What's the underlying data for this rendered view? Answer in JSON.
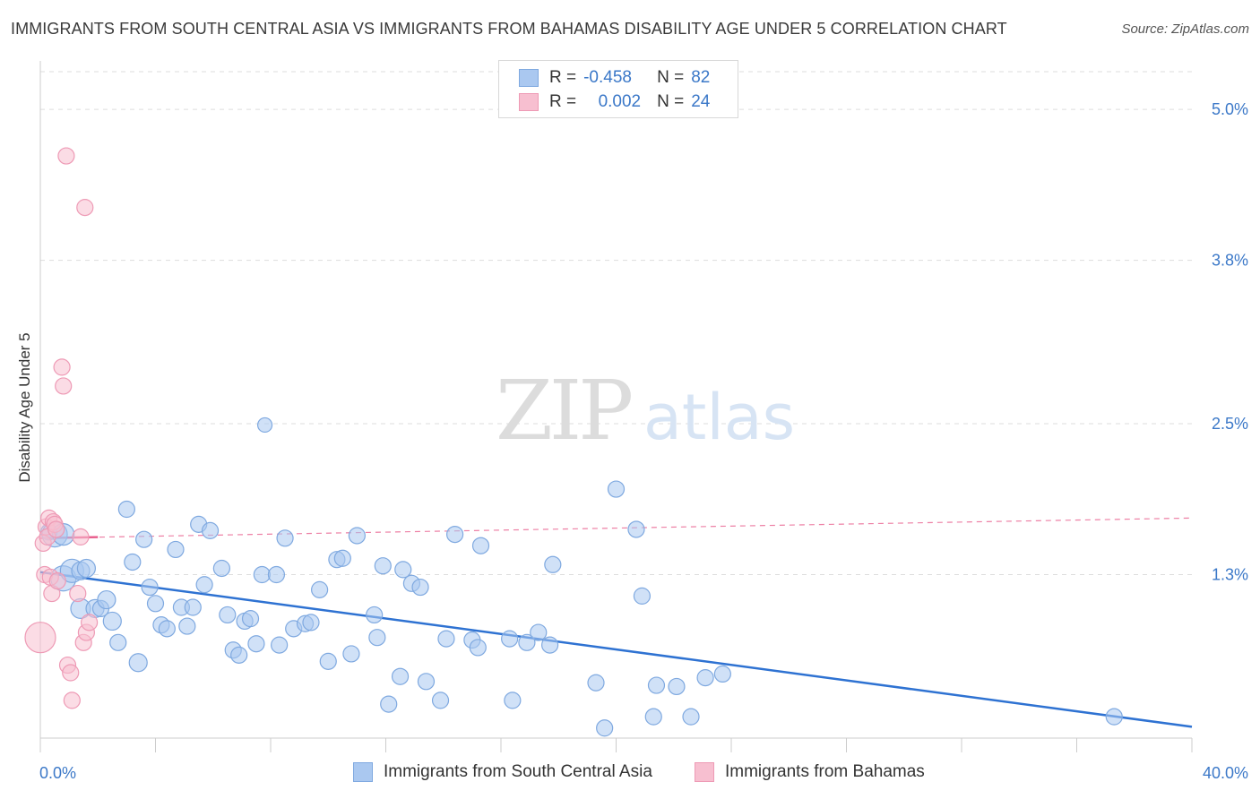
{
  "header": {
    "title": "IMMIGRANTS FROM SOUTH CENTRAL ASIA VS IMMIGRANTS FROM BAHAMAS DISABILITY AGE UNDER 5 CORRELATION CHART",
    "source": "Source: ZipAtlas.com"
  },
  "watermark": {
    "zip": "ZIP",
    "atlas": "atlas"
  },
  "legend": {
    "rows": [
      {
        "r_label": "R =",
        "r_value": "-0.458",
        "n_label": "N =",
        "n_value": "82"
      },
      {
        "r_label": "R =",
        "r_value": "0.002",
        "n_label": "N =",
        "n_value": "24"
      }
    ]
  },
  "colors": {
    "blue_fill": "#aac8f0",
    "blue_stroke": "#7fa9e0",
    "blue_line": "#2e72d2",
    "pink_fill": "#f7bfd0",
    "pink_stroke": "#ee9ab5",
    "pink_line": "#e8608e",
    "axis_label": "#3b78c8",
    "grid": "#dddddd"
  },
  "chart_data": {
    "type": "scatter",
    "title": "IMMIGRANTS FROM SOUTH CENTRAL ASIA VS IMMIGRANTS FROM BAHAMAS DISABILITY AGE UNDER 5 CORRELATION CHART",
    "xlabel": "",
    "ylabel": "Disability Age Under 5",
    "xlim": [
      0,
      40
    ],
    "ylim": [
      0,
      5.3
    ],
    "x_tick_labels": [
      "0.0%",
      "40.0%"
    ],
    "y_ticks": [
      1.3,
      2.5,
      3.8,
      5.0
    ],
    "y_tick_labels": [
      "1.3%",
      "2.5%",
      "3.8%",
      "5.0%"
    ],
    "grid": true,
    "legend_placement": "top-center",
    "series": [
      {
        "name": "Immigrants from South Central Asia",
        "color": "#aac8f0",
        "trend": {
          "x": [
            0,
            40
          ],
          "y": [
            1.32,
            0.09
          ]
        },
        "points": [
          [
            0.3,
            1.64,
            9
          ],
          [
            0.5,
            1.62,
            14
          ],
          [
            0.8,
            1.62,
            12
          ],
          [
            0.8,
            1.27,
            14
          ],
          [
            1.1,
            1.33,
            13
          ],
          [
            1.4,
            1.33,
            10
          ],
          [
            1.6,
            1.35,
            10
          ],
          [
            1.4,
            1.03,
            11
          ],
          [
            1.9,
            1.03,
            10
          ],
          [
            2.1,
            1.03,
            9
          ],
          [
            2.3,
            1.1,
            10
          ],
          [
            2.5,
            0.93,
            10
          ],
          [
            2.7,
            0.76,
            9
          ],
          [
            3.0,
            1.82,
            9
          ],
          [
            3.2,
            1.4,
            9
          ],
          [
            3.4,
            0.6,
            10
          ],
          [
            3.6,
            1.58,
            9
          ],
          [
            3.8,
            1.2,
            9
          ],
          [
            4.0,
            1.07,
            9
          ],
          [
            4.2,
            0.9,
            9
          ],
          [
            4.4,
            0.87,
            9
          ],
          [
            4.7,
            1.5,
            9
          ],
          [
            4.9,
            1.04,
            9
          ],
          [
            5.1,
            0.89,
            9
          ],
          [
            5.3,
            1.04,
            9
          ],
          [
            5.5,
            1.7,
            9
          ],
          [
            5.7,
            1.22,
            9
          ],
          [
            5.9,
            1.65,
            9
          ],
          [
            6.3,
            1.35,
            9
          ],
          [
            6.5,
            0.98,
            9
          ],
          [
            6.7,
            0.7,
            9
          ],
          [
            6.9,
            0.66,
            9
          ],
          [
            7.1,
            0.93,
            9
          ],
          [
            7.3,
            0.95,
            9
          ],
          [
            7.5,
            0.75,
            9
          ],
          [
            7.7,
            1.3,
            9
          ],
          [
            7.8,
            2.49,
            8
          ],
          [
            8.2,
            1.3,
            9
          ],
          [
            8.3,
            0.74,
            9
          ],
          [
            8.5,
            1.59,
            9
          ],
          [
            8.8,
            0.87,
            9
          ],
          [
            9.2,
            0.91,
            9
          ],
          [
            9.4,
            0.92,
            9
          ],
          [
            9.7,
            1.18,
            9
          ],
          [
            10.0,
            0.61,
            9
          ],
          [
            10.3,
            1.42,
            9
          ],
          [
            10.5,
            1.43,
            9
          ],
          [
            10.8,
            0.67,
            9
          ],
          [
            11.0,
            1.61,
            9
          ],
          [
            11.6,
            0.98,
            9
          ],
          [
            11.7,
            0.8,
            9
          ],
          [
            11.9,
            1.37,
            9
          ],
          [
            12.1,
            0.27,
            9
          ],
          [
            12.5,
            0.49,
            9
          ],
          [
            12.6,
            1.34,
            9
          ],
          [
            12.9,
            1.23,
            9
          ],
          [
            13.2,
            1.2,
            9
          ],
          [
            13.4,
            0.45,
            9
          ],
          [
            13.9,
            0.3,
            9
          ],
          [
            14.1,
            0.79,
            9
          ],
          [
            14.4,
            1.62,
            9
          ],
          [
            15.0,
            0.78,
            9
          ],
          [
            15.2,
            0.72,
            9
          ],
          [
            15.3,
            1.53,
            9
          ],
          [
            16.3,
            0.79,
            9
          ],
          [
            16.4,
            0.3,
            9
          ],
          [
            16.9,
            0.76,
            9
          ],
          [
            17.3,
            0.84,
            9
          ],
          [
            17.7,
            0.74,
            9
          ],
          [
            17.8,
            1.38,
            9
          ],
          [
            19.3,
            0.44,
            9
          ],
          [
            19.6,
            0.08,
            9
          ],
          [
            20.0,
            1.98,
            9
          ],
          [
            20.7,
            1.66,
            9
          ],
          [
            20.9,
            1.13,
            9
          ],
          [
            21.3,
            0.17,
            9
          ],
          [
            21.4,
            0.42,
            9
          ],
          [
            22.1,
            0.41,
            9
          ],
          [
            22.6,
            0.17,
            9
          ],
          [
            23.1,
            0.48,
            9
          ],
          [
            23.7,
            0.51,
            9
          ],
          [
            37.3,
            0.17,
            9
          ]
        ]
      },
      {
        "name": "Immigrants from Bahamas",
        "color": "#f7bfd0",
        "trend": {
          "x": [
            0,
            40
          ],
          "y": [
            1.59,
            1.75
          ]
        },
        "points": [
          [
            0.0,
            0.8,
            17
          ],
          [
            0.1,
            1.55,
            9
          ],
          [
            0.15,
            1.3,
            9
          ],
          [
            0.2,
            1.68,
            9
          ],
          [
            0.25,
            1.6,
            9
          ],
          [
            0.3,
            1.75,
            9
          ],
          [
            0.35,
            1.28,
            9
          ],
          [
            0.4,
            1.15,
            9
          ],
          [
            0.45,
            1.72,
            9
          ],
          [
            0.5,
            1.7,
            9
          ],
          [
            0.55,
            1.66,
            9
          ],
          [
            0.6,
            1.25,
            9
          ],
          [
            0.75,
            2.95,
            9
          ],
          [
            0.8,
            2.8,
            9
          ],
          [
            0.9,
            4.63,
            9
          ],
          [
            0.95,
            0.58,
            9
          ],
          [
            1.05,
            0.52,
            9
          ],
          [
            1.1,
            0.3,
            9
          ],
          [
            1.3,
            1.15,
            9
          ],
          [
            1.4,
            1.6,
            9
          ],
          [
            1.5,
            0.76,
            9
          ],
          [
            1.55,
            4.22,
            9
          ],
          [
            1.6,
            0.84,
            9
          ],
          [
            1.7,
            0.92,
            9
          ]
        ]
      }
    ]
  },
  "bottom_legend": {
    "items": [
      "Immigrants from South Central Asia",
      "Immigrants from Bahamas"
    ]
  }
}
